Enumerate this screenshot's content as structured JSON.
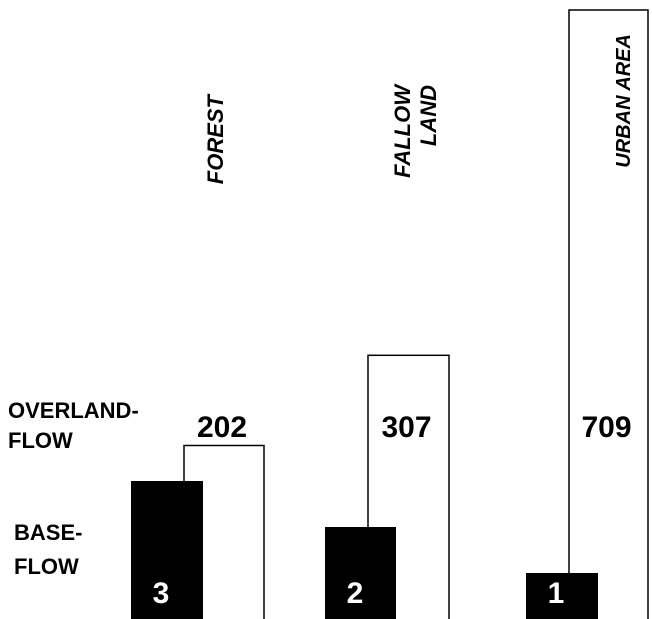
{
  "chart_data": {
    "type": "bar",
    "categories": [
      "FOREST",
      "FALLOW LAND",
      "URBAN AREA"
    ],
    "category_lines": [
      [
        "FOREST"
      ],
      [
        "FALLOW",
        "LAND"
      ],
      [
        "URBAN AREA"
      ]
    ],
    "series": [
      {
        "name": "BASE-FLOW",
        "label_lines": [
          "BASE-",
          "FLOW"
        ],
        "values": [
          3,
          2,
          1
        ],
        "color": "#000000"
      },
      {
        "name": "OVERLAND-FLOW",
        "label_lines": [
          "OVERLAND-",
          "FLOW"
        ],
        "values": [
          202,
          307,
          709
        ],
        "color": "#ffffff"
      }
    ],
    "value_labels": {
      "base": [
        "3",
        "2",
        "1"
      ],
      "overland": [
        "202",
        "307",
        "709"
      ]
    },
    "ylim": [
      0,
      800
    ],
    "grid": false,
    "legend": "none",
    "title": "",
    "xlabel": "",
    "ylabel": ""
  }
}
